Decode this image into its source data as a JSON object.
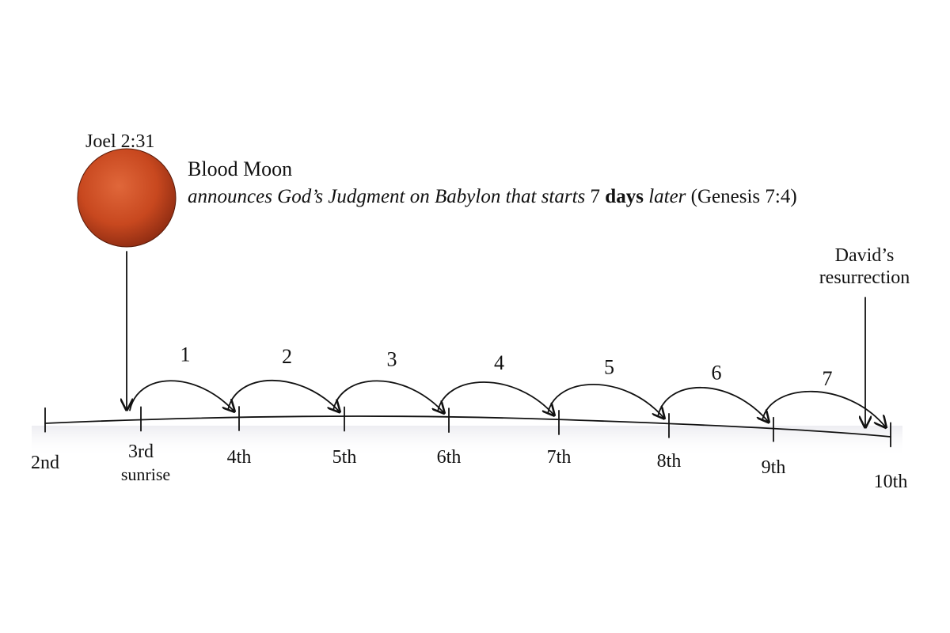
{
  "reference": "Joel 2:31",
  "heading": "Blood Moon",
  "subtitle": {
    "intro": "announces God’s Judgment on Babylon that starts",
    "count": "7",
    "unit": "days",
    "tail": "later",
    "citation": "(Genesis 7:4)"
  },
  "days": [
    {
      "label": "2nd"
    },
    {
      "label": "3rd",
      "note": "sunrise"
    },
    {
      "label": "4th"
    },
    {
      "label": "5th"
    },
    {
      "label": "6th"
    },
    {
      "label": "7th"
    },
    {
      "label": "8th"
    },
    {
      "label": "9th"
    },
    {
      "label": "10th"
    }
  ],
  "hops": [
    "1",
    "2",
    "3",
    "4",
    "5",
    "6",
    "7"
  ],
  "event": {
    "line1": "David’s",
    "line2": "resurrection"
  }
}
